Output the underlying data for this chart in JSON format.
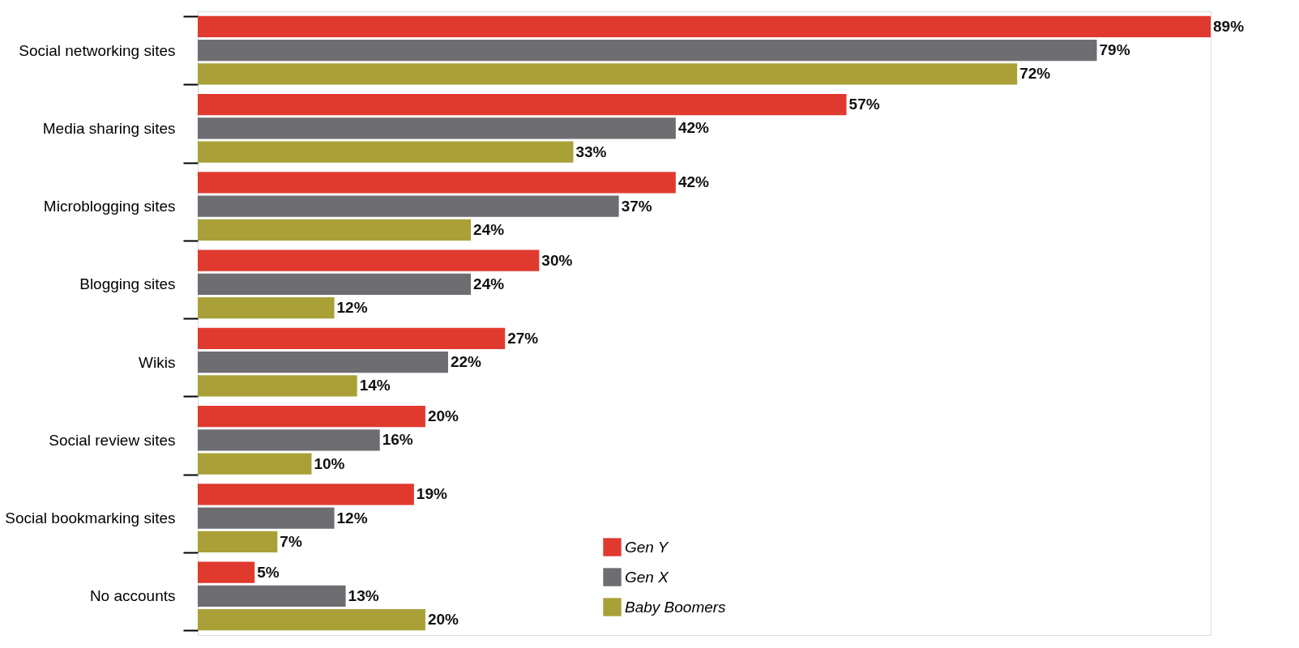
{
  "chart_data": {
    "type": "bar",
    "orientation": "horizontal",
    "legend": "bottom right",
    "categories": [
      "Social networking sites",
      "Media sharing sites",
      "Microblogging sites",
      "Blogging sites",
      "Wikis",
      "Social review sites",
      "Social bookmarking sites",
      "No accounts"
    ],
    "series": [
      {
        "name": "Gen Y",
        "color": "#e03a2f",
        "values": [
          89,
          57,
          42,
          30,
          27,
          20,
          19,
          5
        ],
        "value_labels": [
          "89%",
          "57%",
          "42%",
          "30%",
          "27%",
          "20%",
          "19%",
          "5%"
        ]
      },
      {
        "name": "Gen X",
        "color": "#6e6d71",
        "values": [
          79,
          42,
          37,
          24,
          22,
          16,
          12,
          13
        ],
        "value_labels": [
          "79%",
          "42%",
          "37%",
          "24%",
          "22%",
          "16%",
          "12%",
          "13%"
        ]
      },
      {
        "name": "Baby Boomers",
        "color": "#a9a137",
        "values": [
          72,
          33,
          24,
          12,
          14,
          10,
          7,
          20
        ],
        "value_labels": [
          "72%",
          "33%",
          "24%",
          "12%",
          "14%",
          "10%",
          "7%",
          "20%"
        ]
      }
    ]
  }
}
